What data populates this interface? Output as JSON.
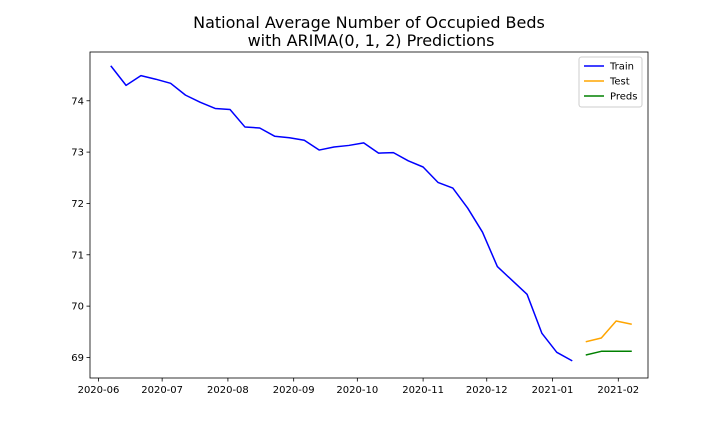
{
  "chart_data": {
    "type": "line",
    "title": [
      "National Average Number of Occupied Beds",
      "with ARIMA(0, 1, 2) Predictions"
    ],
    "xlabel": "",
    "ylabel": "",
    "xlim": [
      "2020-05-28",
      "2021-02-15"
    ],
    "ylim": [
      68.6,
      74.95
    ],
    "x_ticks": [
      "2020-06",
      "2020-07",
      "2020-08",
      "2020-09",
      "2020-10",
      "2020-11",
      "2020-12",
      "2021-01",
      "2021-02"
    ],
    "y_ticks": [
      69,
      70,
      71,
      72,
      73,
      74
    ],
    "grid": false,
    "legend_position": "top-right",
    "series": [
      {
        "name": "Train",
        "color": "#0000ff",
        "x": [
          "2020-06-07",
          "2020-06-14",
          "2020-06-21",
          "2020-06-28",
          "2020-07-05",
          "2020-07-12",
          "2020-07-19",
          "2020-07-26",
          "2020-08-02",
          "2020-08-09",
          "2020-08-16",
          "2020-08-23",
          "2020-08-30",
          "2020-09-06",
          "2020-09-13",
          "2020-09-20",
          "2020-09-27",
          "2020-10-04",
          "2020-10-11",
          "2020-10-18",
          "2020-10-25",
          "2020-11-01",
          "2020-11-08",
          "2020-11-15",
          "2020-11-22",
          "2020-11-29",
          "2020-12-06",
          "2020-12-13",
          "2020-12-20",
          "2020-12-27",
          "2021-01-03",
          "2021-01-10"
        ],
        "values": [
          74.67,
          74.3,
          74.49,
          74.42,
          74.34,
          74.11,
          73.97,
          73.85,
          73.83,
          73.49,
          73.47,
          73.31,
          73.28,
          73.23,
          73.04,
          73.1,
          73.13,
          73.18,
          72.98,
          72.99,
          72.83,
          72.71,
          72.41,
          72.3,
          71.91,
          71.44,
          70.77,
          70.5,
          70.23,
          69.47,
          69.1,
          68.94
        ]
      },
      {
        "name": "Test",
        "color": "#ffa500",
        "x": [
          "2021-01-17",
          "2021-01-24",
          "2021-01-31",
          "2021-02-07"
        ],
        "values": [
          69.31,
          69.38,
          69.71,
          69.65
        ]
      },
      {
        "name": "Preds",
        "color": "#008000",
        "x": [
          "2021-01-17",
          "2021-01-24",
          "2021-01-31",
          "2021-02-07"
        ],
        "values": [
          69.05,
          69.12,
          69.12,
          69.12
        ]
      }
    ]
  }
}
